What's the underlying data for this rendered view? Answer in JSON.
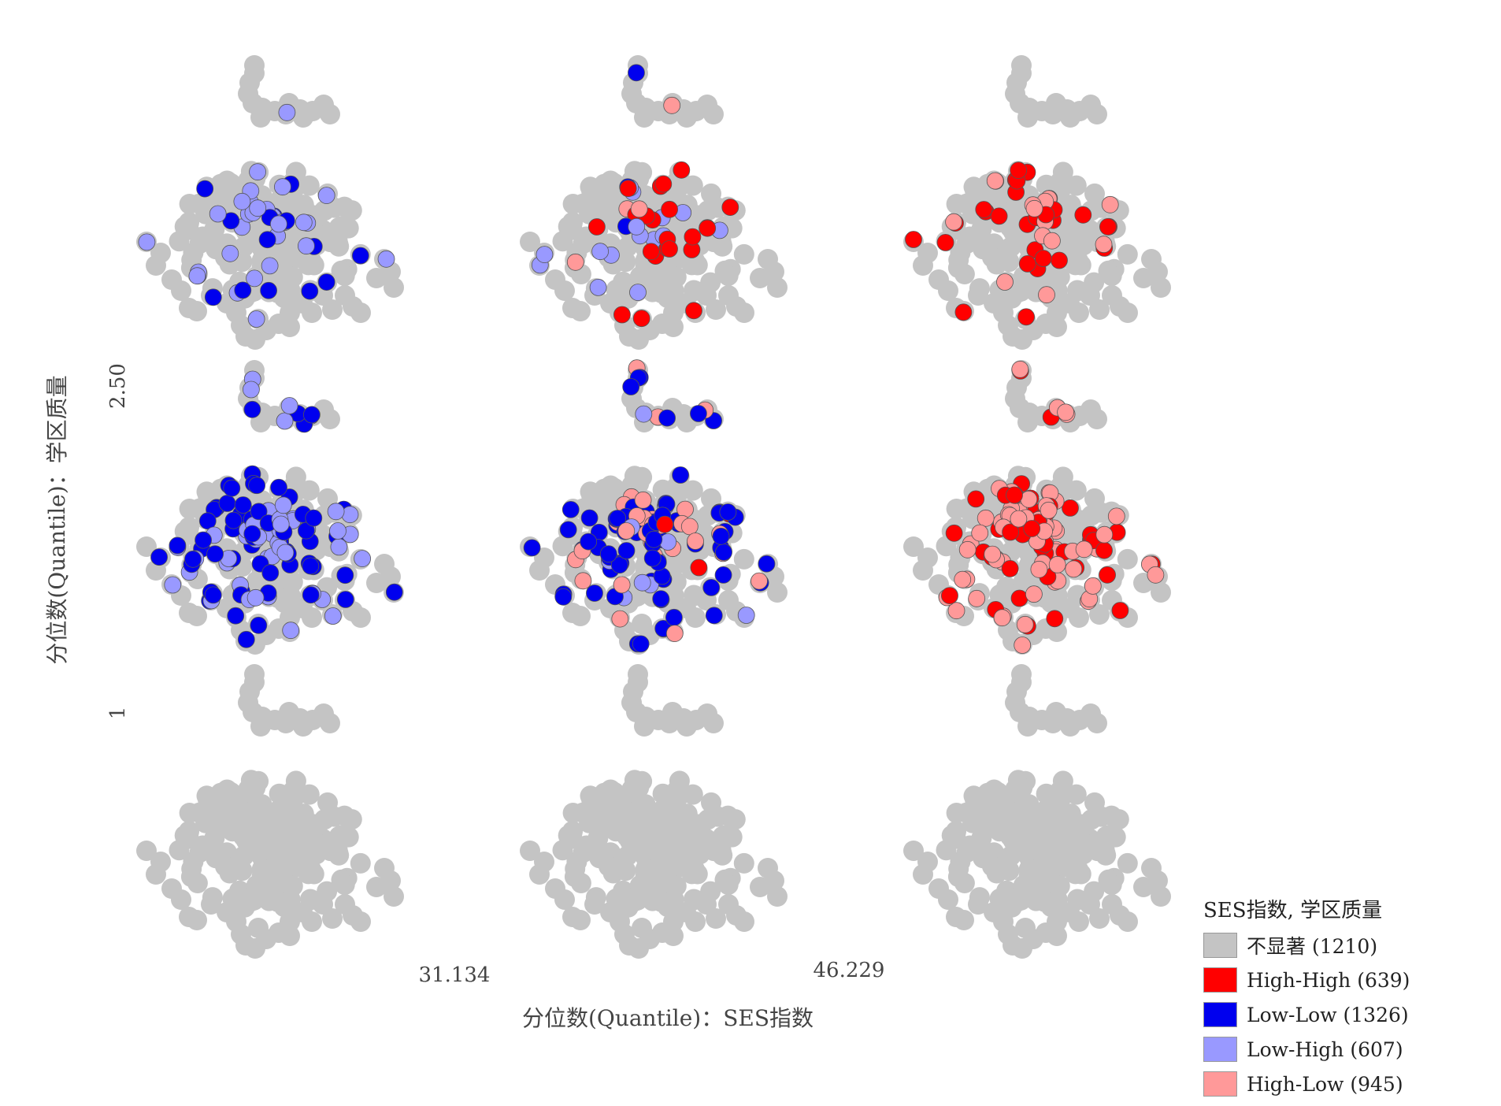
{
  "chart_data": {
    "type": "scatter",
    "subtype": "bivariate small-multiple cluster maps",
    "xlabel": "分位数(Quantile)：SES指数",
    "ylabel": "分位数(Quantile)：学区质量",
    "x_breaks": [
      "31.134",
      "46.229"
    ],
    "y_breaks": [
      "2.50",
      "1"
    ],
    "grid": "3x3",
    "legend_position": "bottom-right",
    "legend": {
      "title": "SES指数, 学区质量",
      "items": [
        {
          "label": "不显著 (1210)",
          "color": "#c4c4c4",
          "category": "not_significant",
          "count": 1210
        },
        {
          "label": "High-High (639)",
          "color": "#ff0000",
          "category": "high_high",
          "count": 639
        },
        {
          "label": "Low-Low (1326)",
          "color": "#0000ee",
          "category": "low_low",
          "count": 1326
        },
        {
          "label": "Low-High (607)",
          "color": "#9999ff",
          "category": "low_high",
          "count": 607
        },
        {
          "label": "High-Low (945)",
          "color": "#ff9999",
          "category": "high_low",
          "count": 945
        }
      ]
    },
    "panel_cells": [
      {
        "row": "top",
        "col": "left",
        "categories": [
          "low_high",
          "low_low"
        ]
      },
      {
        "row": "top",
        "col": "middle",
        "categories": [
          "high_high",
          "low_high",
          "low_low",
          "high_low"
        ]
      },
      {
        "row": "top",
        "col": "right",
        "categories": [
          "high_high",
          "high_low"
        ]
      },
      {
        "row": "middle",
        "col": "left",
        "categories": [
          "low_low",
          "low_high"
        ]
      },
      {
        "row": "middle",
        "col": "middle",
        "categories": [
          "low_low",
          "high_low",
          "high_high",
          "low_high"
        ]
      },
      {
        "row": "middle",
        "col": "right",
        "categories": [
          "high_low",
          "high_high"
        ]
      },
      {
        "row": "bottom",
        "col": "left",
        "categories": []
      },
      {
        "row": "bottom",
        "col": "middle",
        "categories": []
      },
      {
        "row": "bottom",
        "col": "right",
        "categories": []
      }
    ]
  }
}
